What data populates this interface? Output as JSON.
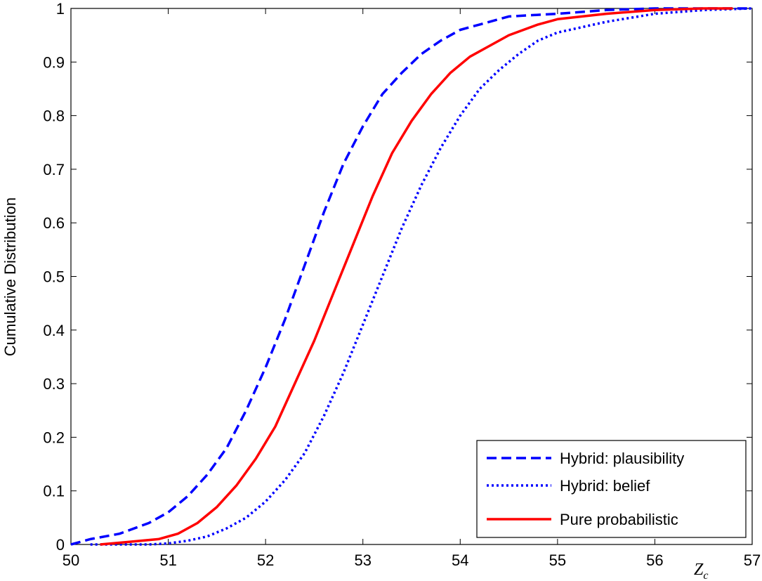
{
  "chart_data": {
    "type": "line",
    "title": "",
    "ylabel": "Cumulative Distribution",
    "xlabel_main": "Z",
    "xlabel_sub": "c",
    "xlim": [
      50,
      57
    ],
    "ylim": [
      0,
      1
    ],
    "xticks": [
      50,
      51,
      52,
      53,
      54,
      55,
      56,
      57
    ],
    "yticks": [
      0,
      0.1,
      0.2,
      0.3,
      0.4,
      0.5,
      0.6,
      0.7,
      0.8,
      0.9,
      1
    ],
    "ytick_labels": [
      "0",
      "0.1",
      "0.2",
      "0.3",
      "0.4",
      "0.5",
      "0.6",
      "0.7",
      "0.8",
      "0.9",
      "1"
    ],
    "grid": false,
    "legend_position": "bottom-right",
    "series": [
      {
        "name": "Hybrid: plausibility",
        "color": "#0000ff",
        "style": "dashed",
        "x": [
          50.0,
          50.2,
          50.5,
          50.8,
          51.0,
          51.2,
          51.4,
          51.6,
          51.8,
          52.0,
          52.2,
          52.4,
          52.6,
          52.8,
          53.0,
          53.2,
          53.4,
          53.6,
          53.8,
          54.0,
          54.2,
          54.5,
          55.0,
          55.5,
          56.0,
          56.5,
          57.0
        ],
        "y": [
          0.0,
          0.01,
          0.02,
          0.04,
          0.06,
          0.09,
          0.13,
          0.18,
          0.25,
          0.33,
          0.42,
          0.52,
          0.62,
          0.71,
          0.78,
          0.84,
          0.88,
          0.915,
          0.94,
          0.96,
          0.97,
          0.985,
          0.99,
          0.997,
          1.0,
          1.0,
          1.0
        ]
      },
      {
        "name": "Hybrid: belief",
        "color": "#0000ff",
        "style": "dotted",
        "x": [
          50.2,
          50.5,
          50.8,
          51.0,
          51.2,
          51.4,
          51.6,
          51.8,
          52.0,
          52.2,
          52.4,
          52.6,
          52.8,
          53.0,
          53.2,
          53.4,
          53.6,
          53.8,
          54.0,
          54.2,
          54.4,
          54.6,
          54.8,
          55.0,
          55.5,
          56.0,
          56.5,
          57.0
        ],
        "y": [
          0.0,
          0.0,
          0.0,
          0.002,
          0.007,
          0.015,
          0.03,
          0.05,
          0.08,
          0.12,
          0.17,
          0.24,
          0.32,
          0.41,
          0.5,
          0.59,
          0.67,
          0.74,
          0.8,
          0.85,
          0.885,
          0.915,
          0.94,
          0.955,
          0.975,
          0.99,
          0.997,
          1.0
        ]
      },
      {
        "name": "Pure probabilistic",
        "color": "#ff0000",
        "style": "solid",
        "x": [
          50.3,
          50.6,
          50.9,
          51.1,
          51.3,
          51.5,
          51.7,
          51.9,
          52.1,
          52.3,
          52.5,
          52.7,
          52.9,
          53.1,
          53.3,
          53.5,
          53.7,
          53.9,
          54.1,
          54.3,
          54.5,
          54.8,
          55.0,
          55.5,
          56.0,
          56.5,
          56.8
        ],
        "y": [
          0.0,
          0.005,
          0.01,
          0.02,
          0.04,
          0.07,
          0.11,
          0.16,
          0.22,
          0.3,
          0.38,
          0.47,
          0.56,
          0.65,
          0.73,
          0.79,
          0.84,
          0.88,
          0.91,
          0.93,
          0.95,
          0.97,
          0.98,
          0.99,
          0.997,
          1.0,
          1.0
        ]
      }
    ]
  }
}
